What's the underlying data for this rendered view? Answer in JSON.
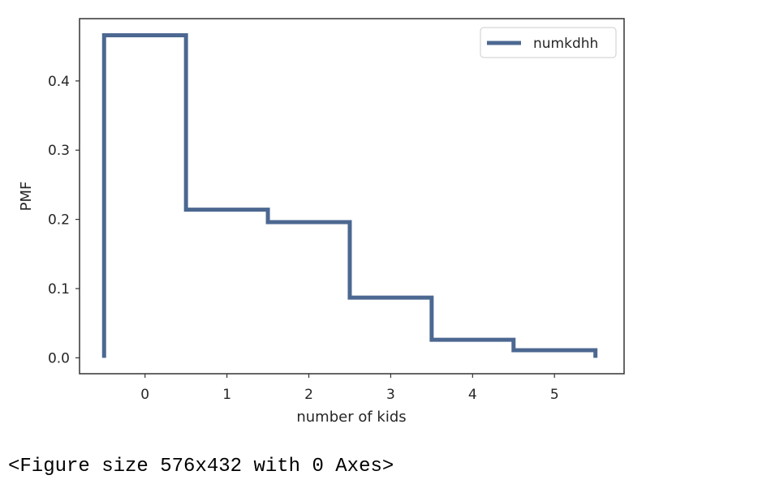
{
  "chart_data": {
    "type": "line",
    "step": true,
    "xlabel": "number of kids",
    "ylabel": "PMF",
    "xlim": [
      -0.8,
      5.85
    ],
    "ylim": [
      -0.023,
      0.49
    ],
    "xticks": [
      0,
      1,
      2,
      3,
      4,
      5
    ],
    "yticks": [
      0.0,
      0.1,
      0.2,
      0.3,
      0.4
    ],
    "ytick_labels": [
      "0.0",
      "0.1",
      "0.2",
      "0.3",
      "0.4"
    ],
    "grid": false,
    "legend_position": "top-right",
    "series": [
      {
        "name": "numkdhh",
        "color": "#4c6891",
        "x": [
          0,
          1,
          2,
          3,
          4,
          5
        ],
        "y": [
          0.466,
          0.214,
          0.196,
          0.087,
          0.026,
          0.011
        ]
      }
    ]
  },
  "output_text": "<Figure size 576x432 with 0 Axes>"
}
